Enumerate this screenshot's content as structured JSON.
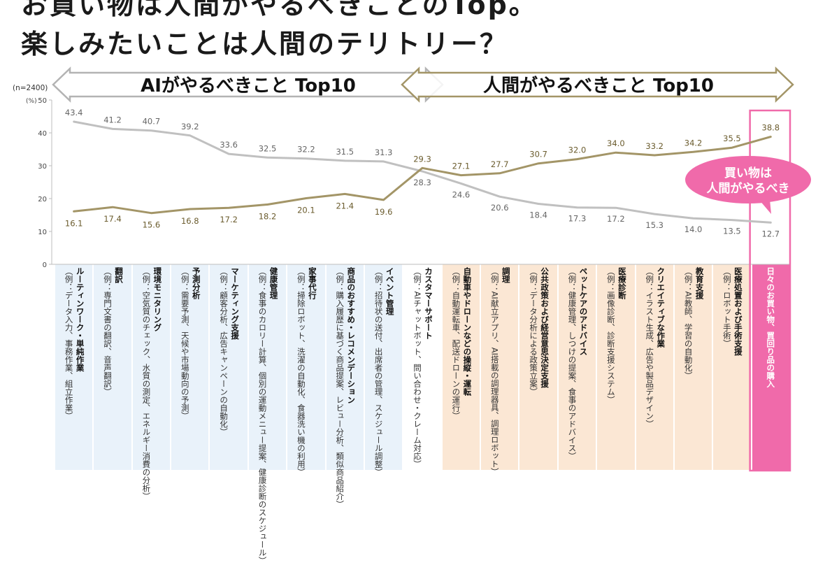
{
  "headline": {
    "line1": "お買い物は人間がやるべきことのTop。",
    "line2": "楽しみたいことは人間のテリトリー？"
  },
  "banners": {
    "ai": "AIがやるべきこと Top10",
    "human": "人間がやるべきこと Top10"
  },
  "callout": {
    "line1": "買い物は",
    "line2": "人間がやるべき"
  },
  "colors": {
    "ai_series": "#c0c0c0",
    "human_series": "#a39567",
    "ai_column_bg": "#e9f2fa",
    "human_column_bg": "#fbe7d4",
    "highlight": "#f06aaa",
    "arrow_outline": "#a39567"
  },
  "chart_data": {
    "type": "line",
    "sample_note": "(n=2400)",
    "unit_label": "(%)",
    "ylim": [
      0,
      50
    ],
    "yticks": [
      0,
      10,
      20,
      30,
      40,
      50
    ],
    "grid": false,
    "categories": [
      {
        "name": "ルーティンワーク・単純作業",
        "example": "（例：データ入力、事務作業、組立作業）"
      },
      {
        "name": "翻訳",
        "example": "（例：専門文書の翻訳、音声翻訳）"
      },
      {
        "name": "環境モニタリング",
        "example": "（例：空気質のチェック、水質の測定、エネルギー消費の分析）"
      },
      {
        "name": "予測分析",
        "example": "（例：需要予測、天候や市場動向の予測）"
      },
      {
        "name": "マーケティング支援",
        "example": "（例：顧客分析、広告キャンペーンの自動化）"
      },
      {
        "name": "健康管理",
        "example": "（例：食事のカロリー計算、個別の運動メニュー提案、健康診断のスケジュール）"
      },
      {
        "name": "家事代行",
        "example": "（例：掃除ロボット、洗濯の自動化、食器洗い機の利用）"
      },
      {
        "name": "商品のおすすめ・レコメンデーション",
        "example": "（例：購入履歴に基づく商品提案、レビュー分析、類似商品紹介）"
      },
      {
        "name": "イベント管理",
        "example": "（例：招待状の送付、出席者の管理、スケジュール調整）"
      },
      {
        "name": "カスタマーサポート",
        "example": "（例：AIチャットボット、問い合わせ・クレーム対応）"
      },
      {
        "name": "自動車やドローンなどの操縦・運転",
        "example": "（例：自動運転車、配送ドローンの運行）"
      },
      {
        "name": "調理",
        "example": "（例：AI献立アプリ、AI搭載の調理器具、調理ロボット）"
      },
      {
        "name": "公共政策および経営意思決定支援",
        "example": "（例：データ分析による政策立案）"
      },
      {
        "name": "ペットケアのアドバイス",
        "example": "（例：健康管理、しつけの提案、食事のアドバイス）"
      },
      {
        "name": "医療診断",
        "example": "（例：画像診断、診断支援システム）"
      },
      {
        "name": "クリエイティブな作業",
        "example": "（例：イラスト生成、広告や製品デザイン）"
      },
      {
        "name": "教育支援",
        "example": "（例：AI教師、学習の自動化）"
      },
      {
        "name": "医療処置および手術支援",
        "example": "（例：ロボット手術）"
      },
      {
        "name": "日々のお買い物、買回り品の購入",
        "example": ""
      }
    ],
    "series": [
      {
        "key": "ai",
        "values": [
          43.4,
          41.2,
          40.7,
          39.2,
          33.6,
          32.5,
          32.2,
          31.5,
          31.3,
          28.3,
          24.6,
          20.6,
          18.4,
          17.3,
          17.2,
          15.3,
          14.0,
          13.5,
          12.7
        ]
      },
      {
        "key": "human",
        "values": [
          16.1,
          17.4,
          15.6,
          16.8,
          17.2,
          18.2,
          20.1,
          21.4,
          19.6,
          29.3,
          27.1,
          27.7,
          30.7,
          32.0,
          34.0,
          33.2,
          34.2,
          35.5,
          38.8
        ]
      }
    ],
    "ai_group_count": 10,
    "highlight_index": 18
  }
}
